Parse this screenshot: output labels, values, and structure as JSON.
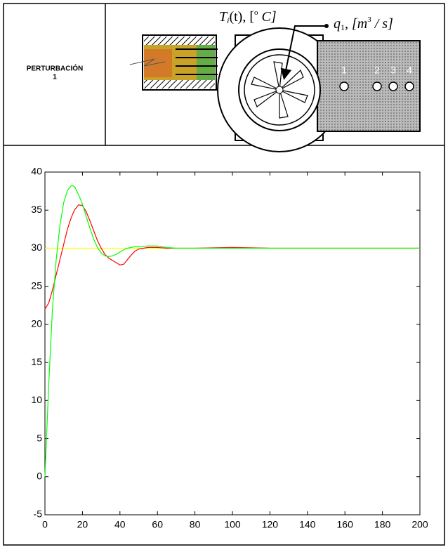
{
  "header": {
    "label_lines": [
      "PERTURBACIÓN",
      "1"
    ]
  },
  "diagram": {
    "temp_label": [
      "T",
      "i",
      "(t), [",
      "o",
      " C]"
    ],
    "flow_label": [
      "q",
      "1",
      ", [m",
      "3",
      " / s]"
    ],
    "ports": [
      "1",
      "2",
      "3",
      "4"
    ]
  },
  "chart_data": {
    "type": "line",
    "x": [
      0,
      2,
      4,
      6,
      8,
      10,
      12,
      14,
      15,
      16,
      18,
      20,
      22,
      24,
      26,
      28,
      30,
      32,
      34,
      36,
      38,
      40,
      42,
      44,
      46,
      48,
      50,
      55,
      60,
      65,
      70,
      80,
      100,
      120,
      140,
      160,
      180,
      200
    ],
    "series": [
      {
        "color": "#ffff00",
        "values": [
          30,
          30,
          30,
          30,
          30,
          30,
          30,
          30,
          30,
          30,
          30,
          30,
          30,
          30,
          30,
          30,
          30,
          30,
          30,
          30,
          30,
          30,
          30,
          30,
          30,
          30,
          30,
          30,
          30,
          30,
          30,
          30,
          30,
          30,
          30,
          30,
          30,
          30
        ]
      },
      {
        "color": "#ff0000",
        "values": [
          22,
          22.8,
          24.5,
          26.5,
          28.5,
          30.5,
          32.5,
          34,
          34.6,
          35.1,
          35.7,
          35.6,
          34.8,
          33.6,
          32.3,
          31,
          30,
          29.2,
          28.7,
          28.4,
          28.1,
          27.8,
          27.9,
          28.5,
          29.1,
          29.6,
          29.9,
          30.1,
          30.1,
          30,
          30,
          30,
          30.1,
          30,
          30,
          30,
          30,
          30
        ]
      },
      {
        "color": "#00ff00",
        "values": [
          0,
          12,
          22,
          28.5,
          33,
          36,
          37.6,
          38.2,
          38.2,
          38,
          37,
          35.8,
          34.2,
          32.6,
          31.2,
          30.1,
          29.4,
          29,
          28.9,
          29,
          29.2,
          29.5,
          29.8,
          30,
          30.1,
          30.2,
          30.2,
          30.3,
          30.3,
          30.1,
          30,
          30,
          30,
          30,
          30,
          30,
          30,
          30
        ]
      }
    ],
    "xlim": [
      0,
      200
    ],
    "xticks": [
      0,
      20,
      40,
      60,
      80,
      100,
      120,
      140,
      160,
      180,
      200
    ],
    "ylim": [
      -5,
      40
    ],
    "yticks": [
      -5,
      0,
      5,
      10,
      15,
      20,
      25,
      30,
      35,
      40
    ]
  }
}
